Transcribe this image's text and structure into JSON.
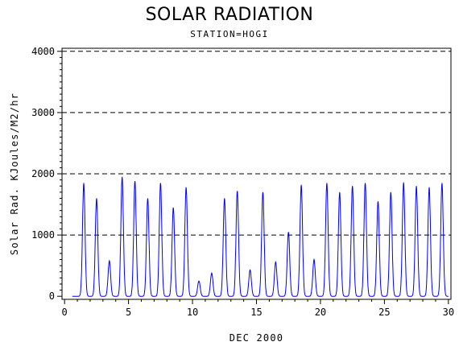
{
  "chart_data": {
    "type": "line",
    "title": "SOLAR RADIATION",
    "subtitle": "STATION=HOGI",
    "xlabel": "DEC 2000",
    "ylabel": "Solar Rad. KJoules/M2/hr",
    "xlim": [
      -0.2,
      30.2
    ],
    "ylim": [
      -50,
      4050
    ],
    "xticks": [
      0,
      5,
      10,
      15,
      20,
      25,
      30
    ],
    "yticks": [
      0,
      1000,
      2000,
      3000,
      4000
    ],
    "grid": "horizontal dashed at 1000, 2000, 3000, 4000",
    "series": [
      {
        "color": "#0000ff",
        "daily_peaks": [
          {
            "day": 1.5,
            "value": 1850
          },
          {
            "day": 2.5,
            "value": 1600
          },
          {
            "day": 3.5,
            "value": 580
          },
          {
            "day": 4.5,
            "value": 1950
          },
          {
            "day": 5.5,
            "value": 1880
          },
          {
            "day": 6.5,
            "value": 1600
          },
          {
            "day": 7.5,
            "value": 1850
          },
          {
            "day": 8.5,
            "value": 1450
          },
          {
            "day": 9.5,
            "value": 1780
          },
          {
            "day": 10.5,
            "value": 250
          },
          {
            "day": 11.5,
            "value": 380
          },
          {
            "day": 12.5,
            "value": 1600
          },
          {
            "day": 13.5,
            "value": 1720
          },
          {
            "day": 14.5,
            "value": 430
          },
          {
            "day": 15.5,
            "value": 1700
          },
          {
            "day": 16.5,
            "value": 560
          },
          {
            "day": 17.5,
            "value": 1050
          },
          {
            "day": 18.5,
            "value": 1820
          },
          {
            "day": 19.5,
            "value": 600
          },
          {
            "day": 20.5,
            "value": 1850
          },
          {
            "day": 21.5,
            "value": 1700
          },
          {
            "day": 22.5,
            "value": 1800
          },
          {
            "day": 23.5,
            "value": 1850
          },
          {
            "day": 24.5,
            "value": 1550
          },
          {
            "day": 25.5,
            "value": 1700
          },
          {
            "day": 26.5,
            "value": 1860
          },
          {
            "day": 27.5,
            "value": 1800
          },
          {
            "day": 28.5,
            "value": 1780
          },
          {
            "day": 29.5,
            "value": 1850
          }
        ]
      }
    ]
  }
}
